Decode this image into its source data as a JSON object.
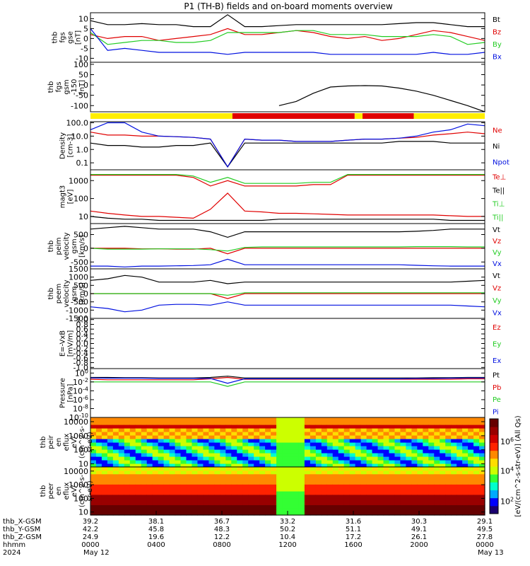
{
  "title": "P1 (TH-B) fields and on-board moments overview",
  "colors": {
    "black": "#000000",
    "red": "#e00000",
    "green": "#22cc22",
    "blue": "#0010e0",
    "yellow": "#ffee00"
  },
  "colorbar": {
    "label": "[eV/(cm^2-s-str-eV)] (All Qs)",
    "ticks": [
      "10^6",
      "10^4",
      "10^2"
    ],
    "colors": [
      "#1a0070",
      "#0000ff",
      "#00aaff",
      "#00ffcc",
      "#33ff33",
      "#ccff00",
      "#ffdd00",
      "#ff8800",
      "#ff2200",
      "#cc0000",
      "#990000",
      "#660000"
    ]
  },
  "chart_data": [
    {
      "type": "line",
      "id": "fgs_gse",
      "ylabel": [
        "thb",
        "fgs",
        "gse",
        "[nT]"
      ],
      "ylim": [
        -12,
        13
      ],
      "yticks": [
        "10",
        "5",
        "0",
        "-5",
        "-10"
      ],
      "legend": [
        "Bt",
        "Bz",
        "By",
        "Bx"
      ],
      "series": [
        {
          "name": "Bt",
          "values": [
            9,
            7,
            7,
            7.5,
            7,
            7,
            6,
            6,
            12,
            6,
            6,
            6.5,
            7,
            7,
            7,
            7,
            7,
            7,
            7.5,
            8,
            8,
            7,
            6,
            6
          ]
        },
        {
          "name": "Bz",
          "values": [
            2,
            0,
            1,
            1,
            -1,
            0,
            1,
            2,
            5,
            2,
            2,
            3,
            4,
            3,
            1,
            0,
            1,
            -1,
            0,
            2,
            4,
            3,
            1,
            -1
          ]
        },
        {
          "name": "By",
          "values": [
            3,
            -3,
            -2,
            -1,
            -1,
            -2,
            -2,
            -1,
            3,
            3,
            3,
            3,
            4,
            4,
            2,
            2,
            2,
            1,
            1,
            1,
            2,
            1,
            -3,
            -2
          ]
        },
        {
          "name": "Bx",
          "values": [
            5,
            -6,
            -5,
            -6,
            -7,
            -7,
            -7,
            -7,
            -8,
            -7,
            -7,
            -7,
            -7,
            -7,
            -8,
            -8,
            -8,
            -8,
            -8,
            -8,
            -7,
            -8,
            -8,
            -7
          ]
        }
      ]
    },
    {
      "type": "line",
      "id": "fgs_gsm_offset",
      "ylabel": [
        "thb",
        "fgs",
        "gsm",
        "-150",
        "[nT]"
      ],
      "ylim": [
        -130,
        110
      ],
      "yticks": [
        "100",
        "50",
        "0",
        "-50",
        "-100"
      ],
      "series": [
        {
          "name": "",
          "values": [
            null,
            null,
            null,
            null,
            null,
            null,
            null,
            null,
            null,
            null,
            null,
            -100,
            -80,
            -40,
            -10,
            -5,
            -3,
            -5,
            -15,
            -30,
            -50,
            -75,
            -100,
            -130
          ]
        }
      ]
    },
    {
      "type": "bar",
      "id": "region_bar",
      "segments": [
        [
          "yellow",
          0,
          0.36
        ],
        [
          "red",
          0.36,
          0.67
        ],
        [
          "yellow",
          0.67,
          0.69
        ],
        [
          "red",
          0.69,
          0.82
        ],
        [
          "yellow",
          0.82,
          1.0
        ]
      ]
    },
    {
      "type": "line",
      "id": "density",
      "ylabel": [
        "Density",
        "[cm-3]"
      ],
      "log": true,
      "ylim": [
        0.03,
        120
      ],
      "yticks": [
        "100.0",
        "10.0",
        "1.0",
        "0.1"
      ],
      "legend": [
        "Ne",
        "Ni",
        "Npot"
      ],
      "series": [
        {
          "name": "Ne",
          "values": [
            20,
            12,
            12,
            10,
            10,
            9,
            8,
            6,
            0.05,
            6,
            5,
            5,
            4,
            4,
            4,
            5,
            6,
            6,
            7,
            8,
            12,
            15,
            20,
            15
          ]
        },
        {
          "name": "Ni",
          "values": [
            3,
            2,
            2,
            1.5,
            1.5,
            2,
            2,
            3,
            0.05,
            3,
            3,
            3,
            3,
            3,
            3,
            3,
            3,
            3,
            4,
            4,
            4,
            3,
            3,
            3
          ]
        },
        {
          "name": "Npot",
          "values": [
            30,
            100,
            100,
            20,
            10,
            9,
            8,
            6,
            0.05,
            6,
            5,
            5,
            4,
            4,
            4,
            5,
            6,
            6,
            7,
            10,
            20,
            30,
            80,
            60
          ]
        }
      ]
    },
    {
      "type": "line",
      "id": "temperature",
      "ylabel": [
        "magt3",
        "[eV]"
      ],
      "log": true,
      "ylim": [
        4,
        4000
      ],
      "yticks": [
        "1000",
        "100",
        "10"
      ],
      "legend": [
        "Te⊥",
        "Te||",
        "Ti⊥",
        "Ti||"
      ],
      "series": [
        {
          "name": "Te⊥",
          "values": [
            20,
            15,
            12,
            10,
            10,
            9,
            8,
            25,
            200,
            20,
            18,
            15,
            15,
            14,
            13,
            12,
            12,
            12,
            12,
            12,
            12,
            11,
            10,
            10
          ]
        },
        {
          "name": "Te||",
          "values": [
            10,
            8,
            7,
            7,
            6,
            6,
            6,
            6,
            6,
            6,
            6,
            7,
            7,
            7,
            7,
            7,
            7,
            7,
            7,
            7,
            7,
            6,
            6,
            6
          ]
        },
        {
          "name": "Ti⊥",
          "values": [
            2000,
            2000,
            2000,
            2000,
            2000,
            2000,
            1500,
            500,
            1000,
            500,
            500,
            500,
            500,
            600,
            600,
            2000,
            2000,
            2000,
            2000,
            2000,
            2000,
            2000,
            2000,
            2000
          ]
        },
        {
          "name": "Ti||",
          "values": [
            2200,
            2200,
            2200,
            2200,
            2200,
            2200,
            1800,
            800,
            1500,
            700,
            700,
            700,
            700,
            800,
            800,
            2200,
            2200,
            2200,
            2200,
            2200,
            2200,
            2200,
            2200,
            2200
          ]
        }
      ]
    },
    {
      "type": "line",
      "id": "peim_velocity",
      "ylabel": [
        "thb",
        "peim",
        "velocity",
        "gsm",
        "[km/s]"
      ],
      "ylim": [
        -750,
        900
      ],
      "yticks": [
        "500",
        "0",
        "-500"
      ],
      "legend": [
        "Vt",
        "Vz",
        "Vy",
        "Vx"
      ],
      "series": [
        {
          "name": "Vt",
          "values": [
            700,
            750,
            800,
            750,
            700,
            700,
            700,
            600,
            400,
            600,
            600,
            600,
            600,
            600,
            600,
            600,
            600,
            600,
            600,
            620,
            650,
            700,
            700,
            700
          ]
        },
        {
          "name": "Vz",
          "values": [
            0,
            0,
            0,
            -20,
            -20,
            -30,
            -30,
            0,
            -200,
            0,
            0,
            0,
            0,
            0,
            0,
            0,
            0,
            0,
            0,
            0,
            0,
            0,
            0,
            0
          ]
        },
        {
          "name": "Vy",
          "values": [
            0,
            -30,
            -30,
            -30,
            -20,
            -20,
            -20,
            -50,
            -100,
            30,
            50,
            50,
            50,
            50,
            50,
            50,
            50,
            50,
            50,
            60,
            60,
            60,
            50,
            50
          ]
        },
        {
          "name": "Vx",
          "values": [
            -650,
            -650,
            -680,
            -650,
            -650,
            -640,
            -630,
            -600,
            -400,
            -600,
            -600,
            -600,
            -600,
            -600,
            -600,
            -600,
            -600,
            -600,
            -600,
            -620,
            -640,
            -650,
            -650,
            -650
          ]
        }
      ]
    },
    {
      "type": "line",
      "id": "peem_velocity",
      "ylabel": [
        "thb",
        "peem",
        "velocity",
        "gsm",
        "[km/s]"
      ],
      "ylim": [
        -1500,
        1500
      ],
      "yticks": [
        "1500",
        "1000",
        "500",
        "0",
        "-500",
        "-1000",
        "-1500"
      ],
      "legend": [
        "Vt",
        "Vz",
        "Vy",
        "Vx"
      ],
      "series": [
        {
          "name": "Vt",
          "values": [
            800,
            900,
            1100,
            1000,
            700,
            700,
            700,
            800,
            600,
            700,
            700,
            700,
            700,
            700,
            700,
            700,
            700,
            700,
            700,
            700,
            700,
            700,
            750,
            800
          ]
        },
        {
          "name": "Vz",
          "values": [
            0,
            0,
            0,
            0,
            0,
            0,
            0,
            0,
            -300,
            0,
            0,
            0,
            0,
            0,
            0,
            0,
            0,
            0,
            0,
            0,
            0,
            0,
            0,
            0
          ]
        },
        {
          "name": "Vy",
          "values": [
            0,
            0,
            0,
            0,
            0,
            0,
            0,
            0,
            -100,
            50,
            50,
            50,
            50,
            50,
            50,
            50,
            50,
            50,
            50,
            50,
            50,
            50,
            50,
            50
          ]
        },
        {
          "name": "Vx",
          "values": [
            -800,
            -900,
            -1100,
            -1000,
            -700,
            -650,
            -650,
            -700,
            -500,
            -700,
            -700,
            -700,
            -700,
            -700,
            -700,
            -700,
            -700,
            -700,
            -700,
            -700,
            -700,
            -700,
            -750,
            -800
          ]
        }
      ]
    },
    {
      "type": "line",
      "id": "efield",
      "ylabel": [
        "E=-VxB",
        "[mV/m]"
      ],
      "ylim": [
        -1.05,
        1.05
      ],
      "yticks": [
        "1.0",
        "0.8",
        "0.6",
        "0.4",
        "0.2",
        "0.0",
        "-0.2",
        "-0.4",
        "-0.6",
        "-0.8",
        "-1.0"
      ],
      "legend": [
        "Ez",
        "Ey",
        "Ex"
      ],
      "series": []
    },
    {
      "type": "line",
      "id": "pressure",
      "ylabel": [
        "Pressure",
        "[nPa]"
      ],
      "log": true,
      "ylim": [
        1e-10,
        10
      ],
      "yticks": [
        "10^0",
        "10^-2",
        "10^-4",
        "10^-6",
        "10^-8",
        "10^-10"
      ],
      "legend": [
        "Pt",
        "Pb",
        "Pe",
        "Pi"
      ],
      "series": [
        {
          "name": "Pt",
          "values": [
            0.1,
            0.1,
            0.09,
            0.09,
            0.08,
            0.08,
            0.08,
            0.1,
            0.2,
            0.08,
            0.08,
            0.08,
            0.08,
            0.08,
            0.08,
            0.08,
            0.08,
            0.08,
            0.08,
            0.08,
            0.09,
            0.09,
            0.1,
            0.1
          ]
        },
        {
          "name": "Pb",
          "values": [
            0.04,
            0.03,
            0.03,
            0.03,
            0.03,
            0.03,
            0.03,
            0.05,
            0.1,
            0.04,
            0.04,
            0.04,
            0.04,
            0.04,
            0.04,
            0.04,
            0.04,
            0.04,
            0.04,
            0.04,
            0.04,
            0.04,
            0.05,
            0.05
          ]
        },
        {
          "name": "Pe",
          "values": [
            0.01,
            0.01,
            0.01,
            0.01,
            0.01,
            0.01,
            0.01,
            0.01,
            0.001,
            0.01,
            0.01,
            0.01,
            0.01,
            0.01,
            0.01,
            0.01,
            0.01,
            0.01,
            0.01,
            0.01,
            0.01,
            0.01,
            0.01,
            0.01
          ]
        },
        {
          "name": "Pi",
          "values": [
            0.08,
            0.07,
            0.07,
            0.07,
            0.06,
            0.06,
            0.06,
            0.06,
            0.005,
            0.05,
            0.05,
            0.05,
            0.05,
            0.05,
            0.05,
            0.05,
            0.05,
            0.05,
            0.05,
            0.06,
            0.06,
            0.07,
            0.08,
            0.08
          ]
        }
      ]
    },
    {
      "type": "heatmap",
      "id": "peir_spec",
      "ylabel": [
        "thb",
        "peir",
        "en",
        "eflux",
        "eV/",
        "(cm^2-s-",
        "sr-eV)"
      ],
      "log": true,
      "ylim": [
        6,
        20000
      ],
      "yticks": [
        "10000",
        "1000",
        "100",
        "10"
      ]
    },
    {
      "type": "heatmap",
      "id": "peer_spec",
      "ylabel": [
        "thb",
        "peer",
        "en",
        "eflux",
        "eV/",
        "(cm^2-s-",
        "sr-eV)"
      ],
      "log": true,
      "ylim": [
        6,
        20000
      ],
      "yticks": [
        "10000",
        "1000",
        "100",
        "10"
      ]
    }
  ],
  "xaxis": {
    "rows": [
      "thb_X-GSM",
      "thb_Y-GSM",
      "thb_Z-GSM",
      "hhmm",
      "2024"
    ],
    "columns": [
      {
        "values": [
          "39.2",
          "42.2",
          "24.9",
          "0000",
          "May 12"
        ]
      },
      {
        "values": [
          "38.1",
          "45.8",
          "19.6",
          "0400",
          ""
        ]
      },
      {
        "values": [
          "36.7",
          "48.3",
          "12.2",
          "0800",
          ""
        ]
      },
      {
        "values": [
          "33.2",
          "50.2",
          "10.4",
          "1200",
          ""
        ]
      },
      {
        "values": [
          "31.6",
          "51.1",
          "17.2",
          "1600",
          ""
        ]
      },
      {
        "values": [
          "30.3",
          "49.1",
          "26.1",
          "2000",
          ""
        ]
      },
      {
        "values": [
          "29.1",
          "49.5",
          "27.8",
          "0000",
          "May 13"
        ]
      }
    ]
  }
}
